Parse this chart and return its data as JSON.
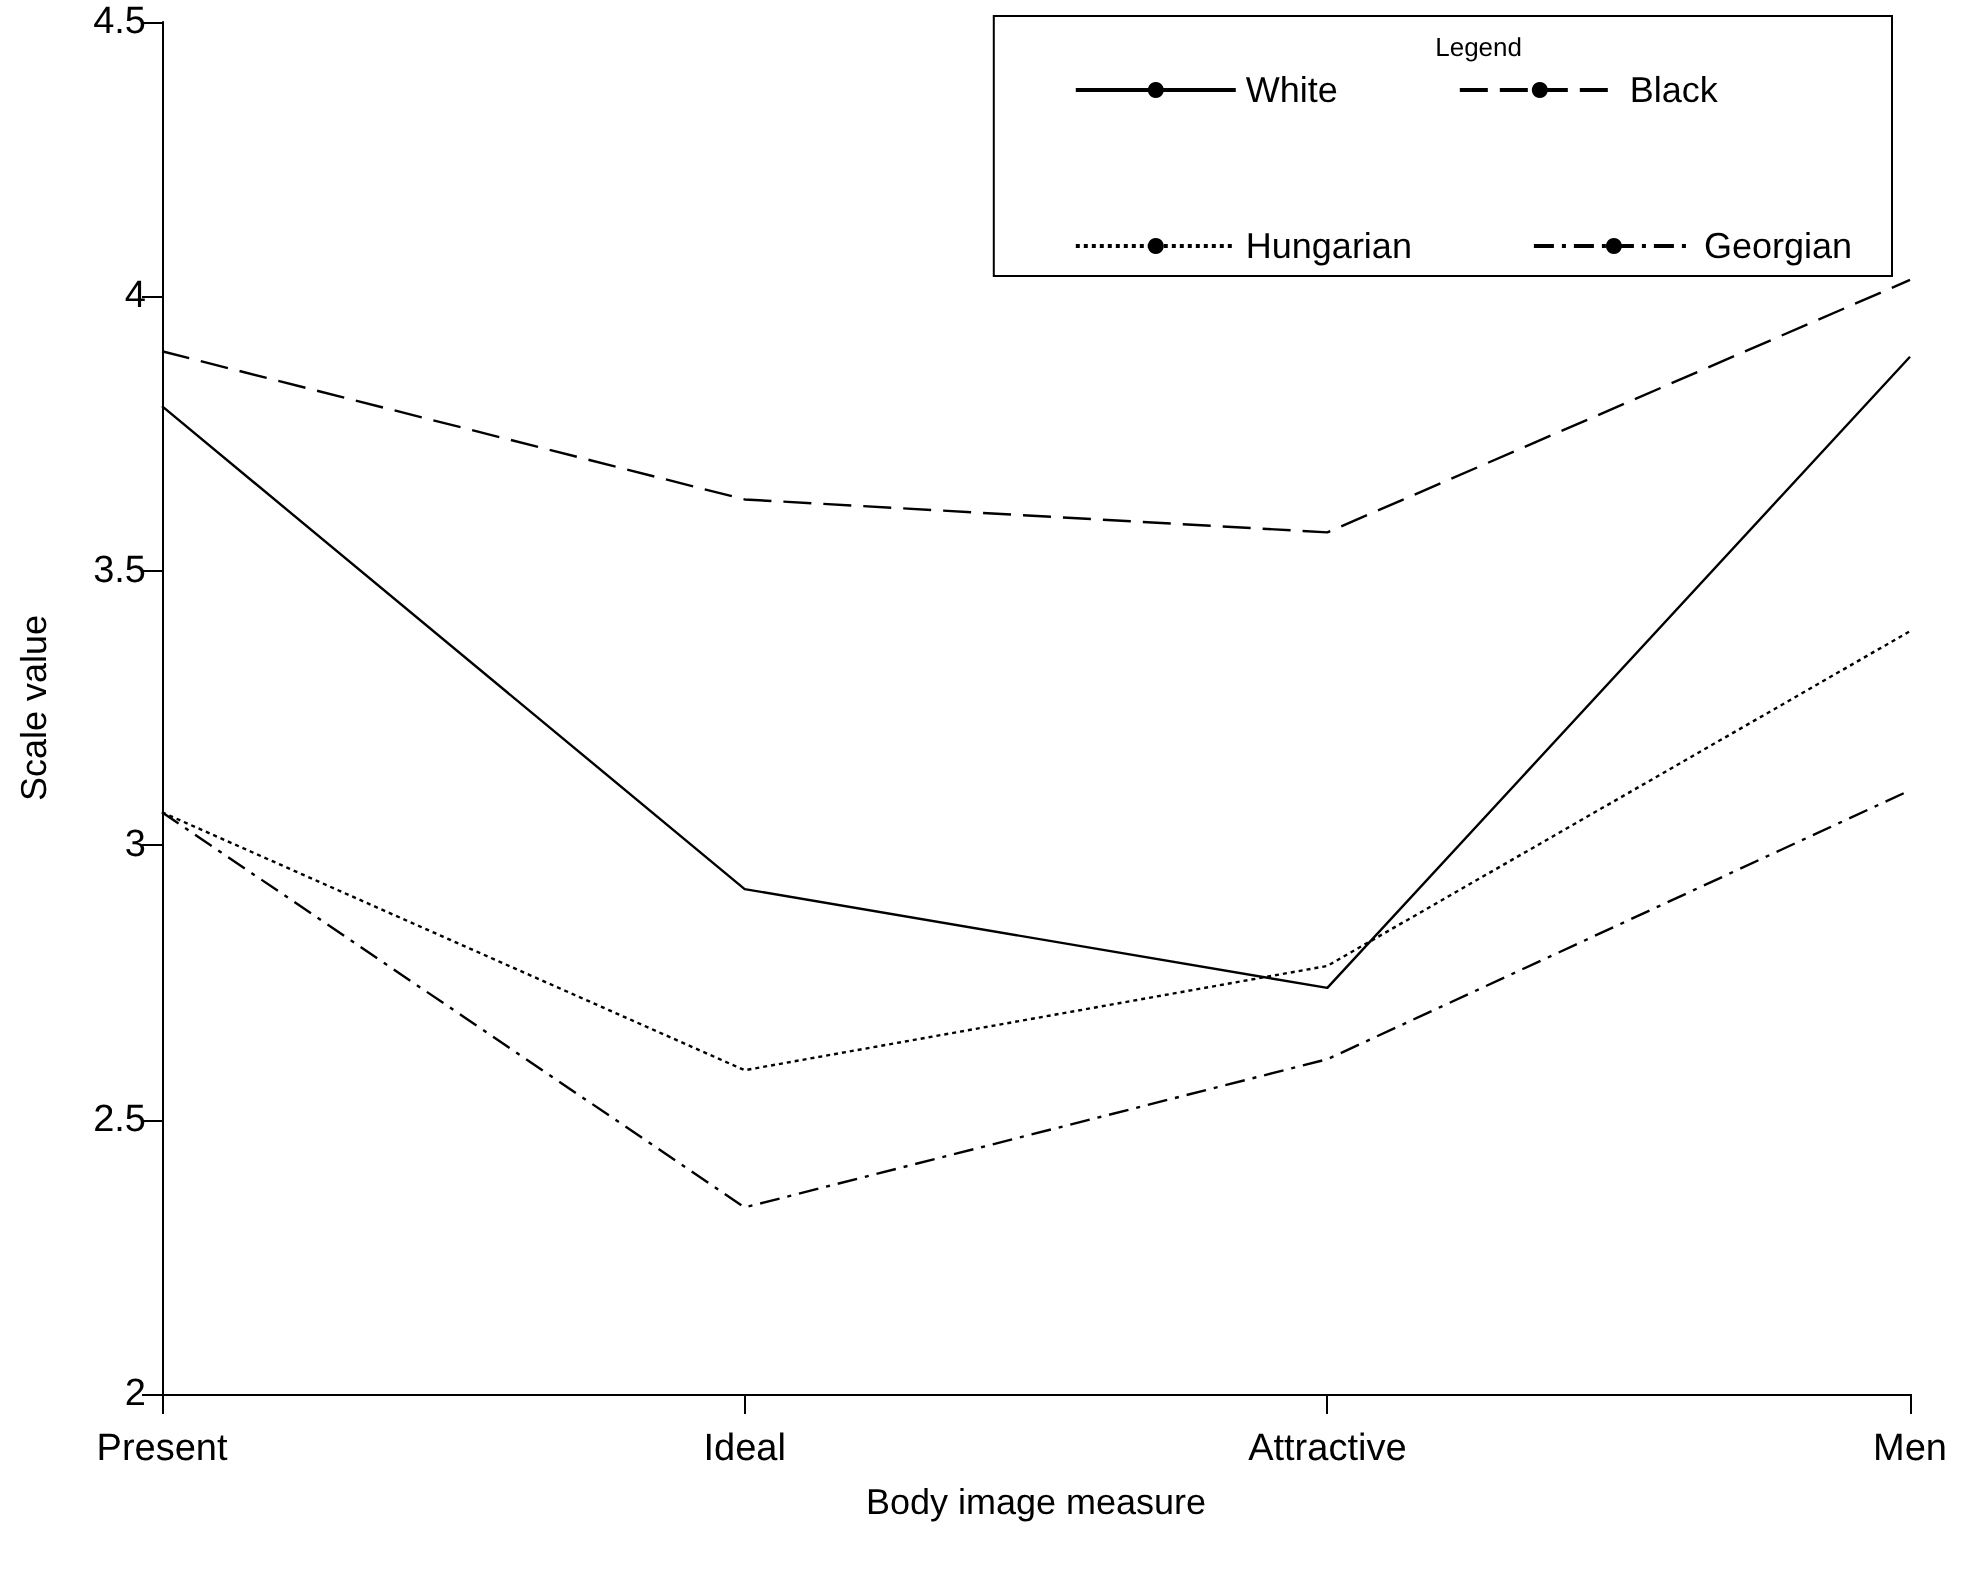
{
  "chart_data": {
    "type": "line",
    "xlabel": "Body image measure",
    "ylabel": "Scale value",
    "legend_title": "Legend",
    "categories": [
      "Present",
      "Ideal",
      "Attractive",
      "Men"
    ],
    "series": [
      {
        "name": "White",
        "color": "#000000",
        "line_style": "solid",
        "values": [
          3.8,
          2.92,
          2.74,
          3.89
        ]
      },
      {
        "name": "Black",
        "color": "#000000",
        "line_style": "dashed",
        "values": [
          3.9,
          3.63,
          3.57,
          4.03
        ]
      },
      {
        "name": "Hungarian",
        "color": "#000000",
        "line_style": "dotted",
        "values": [
          3.06,
          2.59,
          2.78,
          3.39
        ]
      },
      {
        "name": "Georgian",
        "color": "#000000",
        "line_style": "dashdot",
        "values": [
          3.06,
          2.34,
          2.61,
          3.1
        ]
      }
    ],
    "ylim": [
      2,
      4.5
    ],
    "yticks": [
      2,
      2.5,
      3,
      3.5,
      4,
      4.5
    ],
    "grid": false,
    "legend": "top right",
    "marker": "none"
  }
}
